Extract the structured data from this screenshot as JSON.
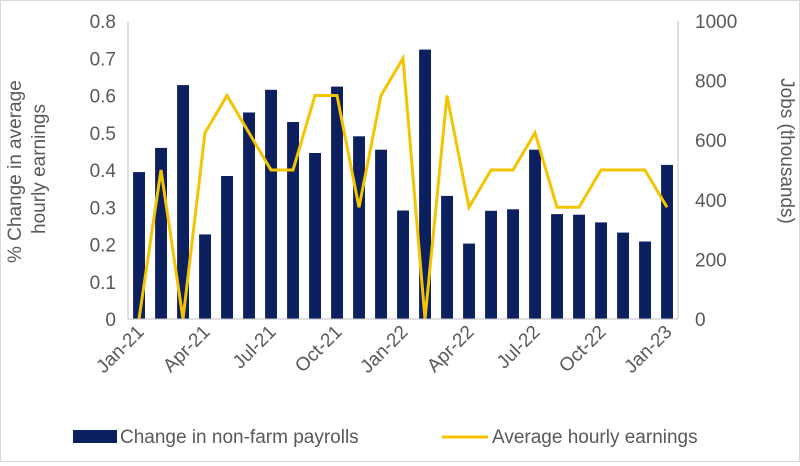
{
  "chart_data": {
    "type": "bar+line",
    "categories": [
      "Jan-21",
      "Feb-21",
      "Mar-21",
      "Apr-21",
      "May-21",
      "Jun-21",
      "Jul-21",
      "Aug-21",
      "Sep-21",
      "Oct-21",
      "Nov-21",
      "Dec-21",
      "Jan-22",
      "Feb-22",
      "Mar-22",
      "Apr-22",
      "May-22",
      "Jun-22",
      "Jul-22",
      "Aug-22",
      "Sep-22",
      "Oct-22",
      "Nov-22",
      "Dec-22",
      "Jan-23"
    ],
    "x_tick_labels": [
      "Jan-21",
      "Apr-21",
      "Jul-21",
      "Oct-21",
      "Jan-22",
      "Apr-22",
      "Jul-22",
      "Oct-22",
      "Jan-23"
    ],
    "series": [
      {
        "name": "Change in non-farm payrolls",
        "kind": "bar",
        "axis": "right",
        "color": "#0c1f5f",
        "values": [
          493,
          574,
          785,
          284,
          480,
          693,
          769,
          661,
          557,
          780,
          613,
          568,
          364,
          904,
          413,
          253,
          363,
          368,
          568,
          352,
          350,
          324,
          290,
          260,
          517
        ]
      },
      {
        "name": "Average hourly earnings",
        "kind": "line",
        "axis": "left",
        "color": "#f5c400",
        "values": [
          0.0,
          0.4,
          0.0,
          0.5,
          0.6,
          0.5,
          0.4,
          0.4,
          0.6,
          0.6,
          0.3,
          0.6,
          0.7,
          0.0,
          0.6,
          0.3,
          0.4,
          0.4,
          0.5,
          0.3,
          0.3,
          0.4,
          0.4,
          0.4,
          0.3
        ]
      }
    ],
    "left_axis": {
      "label": "% Change  in average hourly earnings",
      "label_lines": [
        "% Change  in average",
        "hourly earnings"
      ],
      "ylim": [
        0,
        0.8
      ],
      "ticks": [
        "0",
        "0.1",
        "0.2",
        "0.3",
        "0.4",
        "0.5",
        "0.6",
        "0.7",
        "0.8"
      ]
    },
    "right_axis": {
      "label": "Jobs (thousands)",
      "ylim": [
        0,
        1000
      ],
      "ticks": [
        "0",
        "200",
        "400",
        "600",
        "800",
        "1000"
      ]
    },
    "grid": false,
    "legend_position": "bottom"
  }
}
